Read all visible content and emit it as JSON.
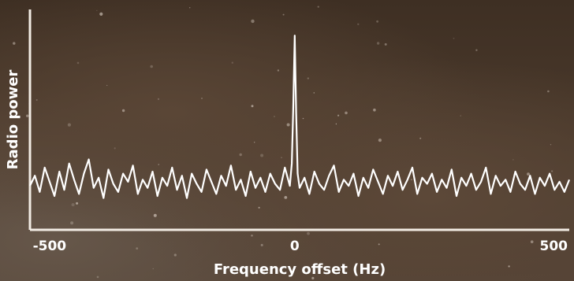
{
  "chart_data": {
    "type": "line",
    "title": "",
    "xlabel": "Frequency offset (Hz)",
    "ylabel": "Radio power",
    "xlim": [
      -540,
      560
    ],
    "ylim": [
      0,
      1
    ],
    "xticks": [
      -500,
      0,
      500
    ],
    "xtick_labels": [
      "-500",
      "0",
      "500"
    ],
    "yticks_shown": false,
    "grid": false,
    "legend": "none",
    "colors": {
      "line": "#ffffff",
      "axes": "#f2ece4",
      "background": "#4a3a2c"
    },
    "series": [
      {
        "values_description_free": true,
        "x": [
          -540,
          -530,
          -520,
          -510,
          -500,
          -490,
          -480,
          -470,
          -460,
          -450,
          -440,
          -430,
          -420,
          -410,
          -400,
          -390,
          -380,
          -370,
          -360,
          -350,
          -340,
          -330,
          -320,
          -310,
          -300,
          -290,
          -280,
          -270,
          -260,
          -250,
          -240,
          -230,
          -220,
          -210,
          -200,
          -190,
          -180,
          -170,
          -160,
          -150,
          -140,
          -130,
          -120,
          -110,
          -100,
          -90,
          -80,
          -70,
          -60,
          -50,
          -40,
          -30,
          -20,
          -10,
          -6,
          -3,
          0,
          3,
          6,
          10,
          20,
          30,
          40,
          50,
          60,
          70,
          80,
          90,
          100,
          110,
          120,
          130,
          140,
          150,
          160,
          170,
          180,
          190,
          200,
          210,
          220,
          230,
          240,
          250,
          260,
          270,
          280,
          290,
          300,
          310,
          320,
          330,
          340,
          350,
          360,
          370,
          380,
          390,
          400,
          410,
          420,
          430,
          440,
          450,
          460,
          470,
          480,
          490,
          500,
          510,
          520,
          530,
          540,
          550,
          560
        ],
        "y": [
          0.24,
          0.29,
          0.21,
          0.33,
          0.26,
          0.19,
          0.31,
          0.22,
          0.35,
          0.27,
          0.2,
          0.3,
          0.37,
          0.23,
          0.28,
          0.18,
          0.32,
          0.25,
          0.21,
          0.3,
          0.26,
          0.34,
          0.2,
          0.27,
          0.23,
          0.31,
          0.19,
          0.28,
          0.24,
          0.33,
          0.22,
          0.29,
          0.18,
          0.3,
          0.25,
          0.21,
          0.32,
          0.26,
          0.2,
          0.29,
          0.24,
          0.34,
          0.22,
          0.27,
          0.19,
          0.31,
          0.23,
          0.28,
          0.21,
          0.3,
          0.25,
          0.22,
          0.33,
          0.24,
          0.35,
          0.62,
          0.98,
          0.6,
          0.3,
          0.23,
          0.28,
          0.2,
          0.31,
          0.25,
          0.22,
          0.29,
          0.34,
          0.21,
          0.27,
          0.24,
          0.3,
          0.19,
          0.28,
          0.23,
          0.32,
          0.26,
          0.2,
          0.29,
          0.24,
          0.31,
          0.22,
          0.27,
          0.33,
          0.2,
          0.28,
          0.25,
          0.3,
          0.21,
          0.27,
          0.23,
          0.32,
          0.19,
          0.28,
          0.24,
          0.3,
          0.22,
          0.26,
          0.33,
          0.2,
          0.29,
          0.24,
          0.27,
          0.21,
          0.31,
          0.25,
          0.22,
          0.29,
          0.2,
          0.28,
          0.24,
          0.3,
          0.22,
          0.26,
          0.21,
          0.27
        ]
      }
    ]
  }
}
